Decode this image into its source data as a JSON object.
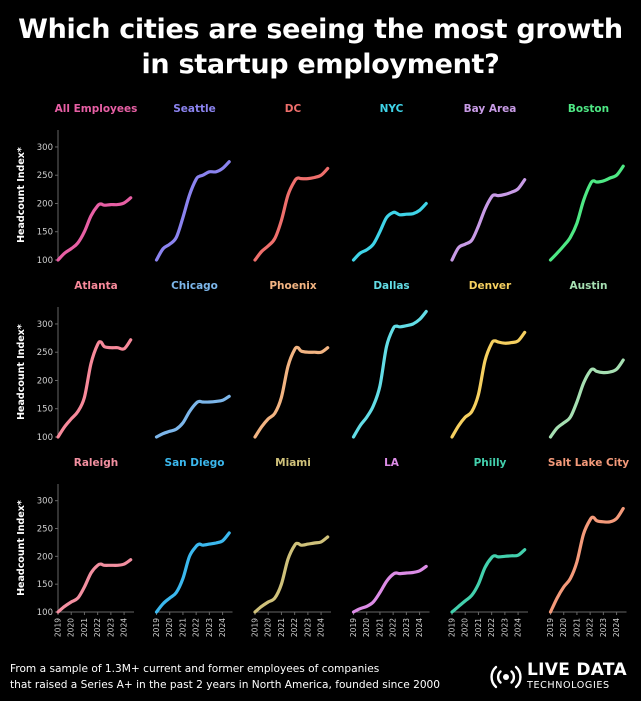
{
  "title": "Which cities are seeing the most growth in startup employment?",
  "footnote_line1": "From a sample of 1.3M+ current and former employees of companies",
  "footnote_line2": "that raised a Series A+ in the past 2 years in North America, founded since 2000",
  "brand": {
    "name": "LIVE DATA",
    "tagline": "TECHNOLOGIES",
    "icon": "broadcast-signal-icon"
  },
  "chart_data": {
    "type": "line",
    "layout": "small-multiples 3 rows x 6 columns",
    "ylabel": "Headcount Index*",
    "ylim": [
      100,
      330
    ],
    "yticks": [
      100,
      150,
      200,
      250,
      300
    ],
    "xlim": [
      2019,
      2024.75
    ],
    "xticks": [
      "2019",
      "2020",
      "2021",
      "2022",
      "2023",
      "2024"
    ],
    "grid": false,
    "series": [
      {
        "name": "All Employees",
        "color": "#e75fa4",
        "x": [
          2019,
          2019.5,
          2020,
          2020.5,
          2021,
          2021.5,
          2022,
          2022.25,
          2022.5,
          2023,
          2023.5,
          2024,
          2024.5
        ],
        "y": [
          100,
          112,
          120,
          130,
          150,
          178,
          196,
          199,
          197,
          198,
          198,
          201,
          210
        ]
      },
      {
        "name": "Seattle",
        "color": "#8b83ef",
        "x": [
          2019,
          2019.5,
          2020,
          2020.5,
          2021,
          2021.5,
          2022,
          2022.25,
          2022.5,
          2023,
          2023.5,
          2024,
          2024.5
        ],
        "y": [
          100,
          120,
          128,
          140,
          175,
          215,
          243,
          248,
          250,
          256,
          256,
          262,
          274
        ]
      },
      {
        "name": "DC",
        "color": "#ef6f6c",
        "x": [
          2019,
          2019.5,
          2020,
          2020.5,
          2021,
          2021.5,
          2022,
          2022.25,
          2022.5,
          2023,
          2023.5,
          2024,
          2024.5
        ],
        "y": [
          100,
          115,
          125,
          138,
          170,
          215,
          240,
          245,
          244,
          244,
          246,
          250,
          262
        ]
      },
      {
        "name": "NYC",
        "color": "#3fd4e8",
        "x": [
          2019,
          2019.5,
          2020,
          2020.5,
          2021,
          2021.5,
          2022,
          2022.25,
          2022.5,
          2023,
          2023.5,
          2024,
          2024.5
        ],
        "y": [
          100,
          112,
          118,
          128,
          150,
          175,
          184,
          183,
          180,
          181,
          182,
          188,
          200
        ]
      },
      {
        "name": "Bay Area",
        "color": "#c89be6",
        "x": [
          2019,
          2019.5,
          2020,
          2020.5,
          2021,
          2021.5,
          2022,
          2022.25,
          2022.5,
          2023,
          2023.5,
          2024,
          2024.5
        ],
        "y": [
          100,
          122,
          128,
          135,
          160,
          190,
          212,
          215,
          214,
          216,
          220,
          226,
          242
        ]
      },
      {
        "name": "Boston",
        "color": "#4ee884",
        "x": [
          2019,
          2019.5,
          2020,
          2020.5,
          2021,
          2021.5,
          2022,
          2022.25,
          2022.5,
          2023,
          2023.5,
          2024,
          2024.5
        ],
        "y": [
          100,
          112,
          125,
          140,
          165,
          205,
          234,
          240,
          238,
          240,
          245,
          250,
          266
        ]
      },
      {
        "name": "Atlanta",
        "color": "#f7899a",
        "x": [
          2019,
          2019.5,
          2020,
          2020.5,
          2021,
          2021.5,
          2022,
          2022.25,
          2022.5,
          2023,
          2023.5,
          2024,
          2024.5
        ],
        "y": [
          100,
          118,
          132,
          145,
          170,
          230,
          264,
          268,
          260,
          258,
          258,
          256,
          272
        ]
      },
      {
        "name": "Chicago",
        "color": "#7cb6ea",
        "x": [
          2019,
          2019.5,
          2020,
          2020.5,
          2021,
          2021.5,
          2022,
          2022.25,
          2022.5,
          2023,
          2023.5,
          2024,
          2024.5
        ],
        "y": [
          100,
          106,
          110,
          114,
          125,
          145,
          160,
          163,
          162,
          162,
          163,
          165,
          172
        ]
      },
      {
        "name": "Phoenix",
        "color": "#f2b482",
        "x": [
          2019,
          2019.5,
          2020,
          2020.5,
          2021,
          2021.5,
          2022,
          2022.25,
          2022.5,
          2023,
          2023.5,
          2024,
          2024.5
        ],
        "y": [
          100,
          118,
          132,
          142,
          170,
          225,
          255,
          258,
          252,
          250,
          250,
          250,
          258
        ]
      },
      {
        "name": "Dallas",
        "color": "#63dde6",
        "x": [
          2019,
          2019.5,
          2020,
          2020.5,
          2021,
          2021.5,
          2022,
          2022.25,
          2022.5,
          2023,
          2023.5,
          2024,
          2024.5
        ],
        "y": [
          100,
          120,
          135,
          155,
          190,
          260,
          292,
          296,
          295,
          297,
          300,
          308,
          322
        ]
      },
      {
        "name": "Denver",
        "color": "#f6d060",
        "x": [
          2019,
          2019.5,
          2020,
          2020.5,
          2021,
          2021.5,
          2022,
          2022.25,
          2022.5,
          2023,
          2023.5,
          2024,
          2024.5
        ],
        "y": [
          100,
          120,
          135,
          145,
          175,
          235,
          266,
          270,
          268,
          266,
          267,
          270,
          285
        ]
      },
      {
        "name": "Austin",
        "color": "#a6dfb2",
        "x": [
          2019,
          2019.5,
          2020,
          2020.5,
          2021,
          2021.5,
          2022,
          2022.25,
          2022.5,
          2023,
          2023.5,
          2024,
          2024.5
        ],
        "y": [
          100,
          116,
          125,
          135,
          162,
          195,
          217,
          220,
          216,
          214,
          215,
          220,
          236
        ]
      },
      {
        "name": "Raleigh",
        "color": "#f28fa0",
        "x": [
          2019,
          2019.5,
          2020,
          2020.5,
          2021,
          2021.5,
          2022,
          2022.25,
          2022.5,
          2023,
          2023.5,
          2024,
          2024.5
        ],
        "y": [
          100,
          110,
          118,
          125,
          145,
          170,
          184,
          186,
          184,
          184,
          184,
          186,
          194
        ]
      },
      {
        "name": "San Diego",
        "color": "#3bb8ee",
        "x": [
          2019,
          2019.5,
          2020,
          2020.5,
          2021,
          2021.5,
          2022,
          2022.25,
          2022.5,
          2023,
          2023.5,
          2024,
          2024.5
        ],
        "y": [
          100,
          115,
          125,
          135,
          160,
          200,
          218,
          222,
          220,
          222,
          224,
          228,
          242
        ]
      },
      {
        "name": "Miami",
        "color": "#cfc17a",
        "x": [
          2019,
          2019.5,
          2020,
          2020.5,
          2021,
          2021.5,
          2022,
          2022.25,
          2022.5,
          2023,
          2023.5,
          2024,
          2024.5
        ],
        "y": [
          100,
          110,
          118,
          125,
          150,
          195,
          220,
          223,
          220,
          222,
          224,
          226,
          235
        ]
      },
      {
        "name": "LA",
        "color": "#dc8ce6",
        "x": [
          2019,
          2019.5,
          2020,
          2020.5,
          2021,
          2021.5,
          2022,
          2022.25,
          2022.5,
          2023,
          2023.5,
          2024,
          2024.5
        ],
        "y": [
          100,
          106,
          110,
          118,
          135,
          155,
          168,
          170,
          169,
          170,
          171,
          174,
          182
        ]
      },
      {
        "name": "Philly",
        "color": "#43d0ad",
        "x": [
          2019,
          2019.5,
          2020,
          2020.5,
          2021,
          2021.5,
          2022,
          2022.25,
          2022.5,
          2023,
          2023.5,
          2024,
          2024.5
        ],
        "y": [
          100,
          110,
          120,
          130,
          150,
          180,
          198,
          201,
          199,
          200,
          201,
          202,
          212
        ]
      },
      {
        "name": "Salt Lake City",
        "color": "#f49a7a",
        "x": [
          2019,
          2019.5,
          2020,
          2020.5,
          2021,
          2021.5,
          2022,
          2022.25,
          2022.5,
          2023,
          2023.5,
          2024,
          2024.5
        ],
        "y": [
          100,
          125,
          145,
          160,
          190,
          240,
          266,
          270,
          264,
          262,
          262,
          268,
          286
        ]
      }
    ]
  }
}
